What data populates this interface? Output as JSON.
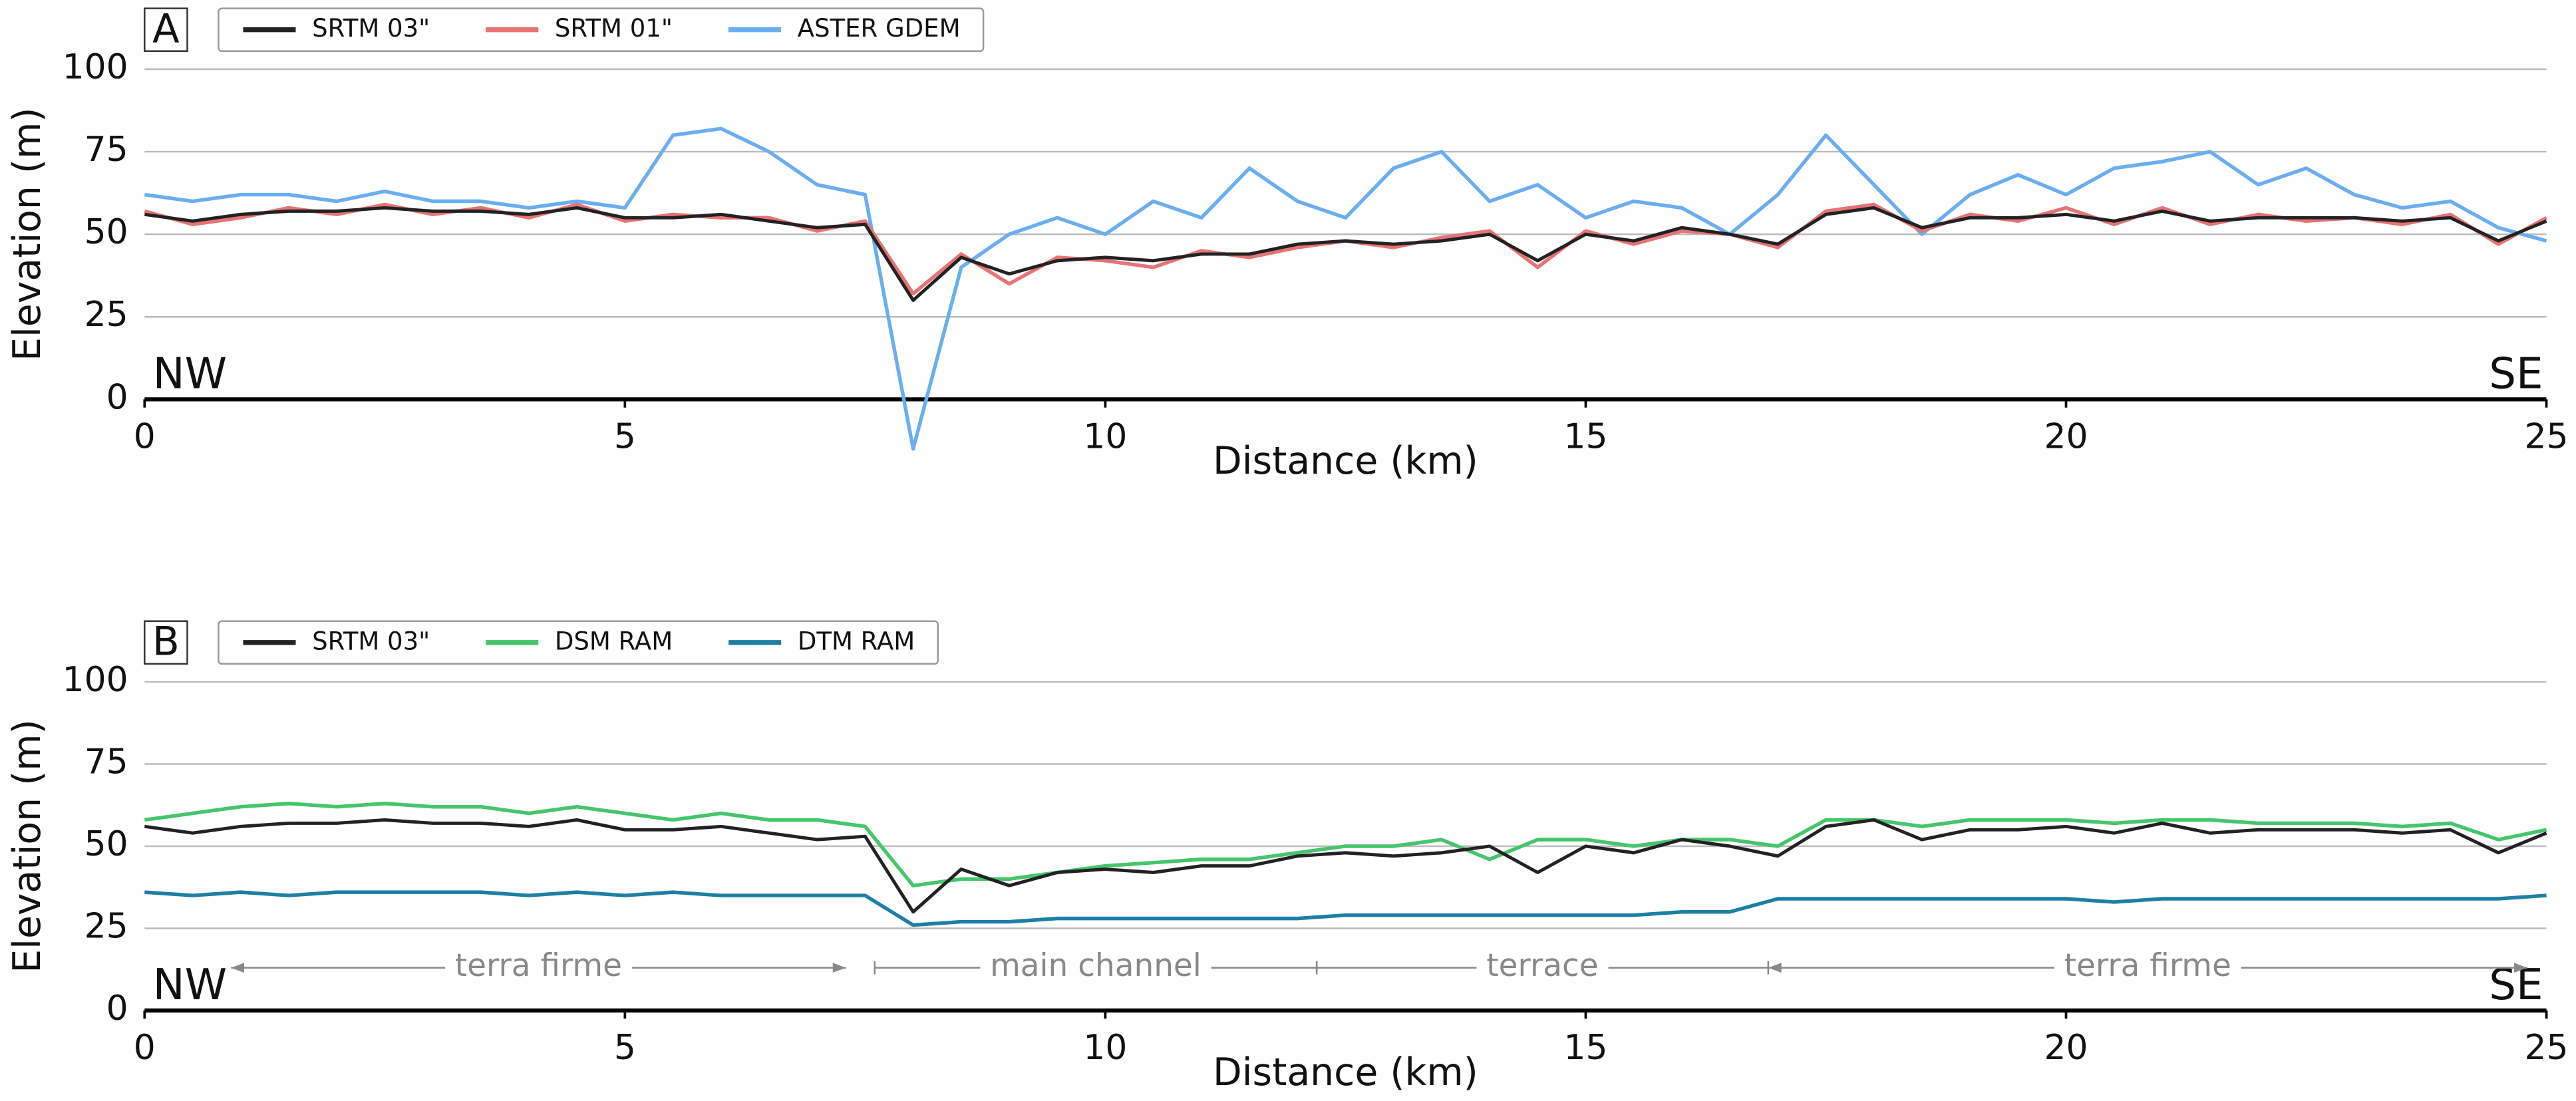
{
  "chart_data": [
    {
      "type": "line",
      "panel_label": "A",
      "x_label": "Distance (km)",
      "y_label": "Elevation (m)",
      "corner_labels": [
        "NW",
        "SE"
      ],
      "xlim": [
        0,
        25
      ],
      "xticks": [
        0,
        5,
        10,
        15,
        20,
        25
      ],
      "ylim": [
        0,
        100
      ],
      "yticks": [
        0,
        25,
        50,
        75,
        100
      ],
      "grid": true,
      "x": [
        0,
        0.5,
        1,
        1.5,
        2,
        2.5,
        3,
        3.5,
        4,
        4.5,
        5,
        5.5,
        6,
        6.5,
        7,
        7.5,
        8,
        8.5,
        9,
        9.5,
        10,
        10.5,
        11,
        11.5,
        12,
        12.5,
        13,
        13.5,
        14,
        14.5,
        15,
        15.5,
        16,
        16.5,
        17,
        17.5,
        18,
        18.5,
        19,
        19.5,
        20,
        20.5,
        21,
        21.5,
        22,
        22.5,
        23,
        23.5,
        24,
        24.5,
        25
      ],
      "series": [
        {
          "name": "ASTER GDEM",
          "color": "#6aaef0",
          "values": [
            62,
            60,
            62,
            62,
            60,
            63,
            60,
            60,
            58,
            60,
            58,
            80,
            82,
            75,
            65,
            62,
            -15,
            40,
            50,
            55,
            50,
            60,
            55,
            70,
            60,
            55,
            70,
            75,
            60,
            65,
            55,
            60,
            58,
            50,
            62,
            80,
            65,
            50,
            62,
            68,
            62,
            70,
            72,
            75,
            65,
            70,
            62,
            58,
            60,
            52,
            48
          ]
        },
        {
          "name": "SRTM 01\"",
          "color": "#e87373",
          "values": [
            57,
            53,
            55,
            58,
            56,
            59,
            56,
            58,
            55,
            59,
            54,
            56,
            55,
            55,
            51,
            54,
            32,
            44,
            35,
            43,
            42,
            40,
            45,
            43,
            46,
            48,
            46,
            49,
            51,
            40,
            51,
            47,
            51,
            50,
            46,
            57,
            59,
            51,
            56,
            54,
            58,
            53,
            58,
            53,
            56,
            54,
            55,
            53,
            56,
            47,
            55
          ]
        },
        {
          "name": "SRTM 03\"",
          "color": "#222222",
          "values": [
            56,
            54,
            56,
            57,
            57,
            58,
            57,
            57,
            56,
            58,
            55,
            55,
            56,
            54,
            52,
            53,
            30,
            43,
            38,
            42,
            43,
            42,
            44,
            44,
            47,
            48,
            47,
            48,
            50,
            42,
            50,
            48,
            52,
            50,
            47,
            56,
            58,
            52,
            55,
            55,
            56,
            54,
            57,
            54,
            55,
            55,
            55,
            54,
            55,
            48,
            54
          ]
        }
      ]
    },
    {
      "type": "line",
      "panel_label": "B",
      "x_label": "Distance (km)",
      "y_label": "Elevation (m)",
      "corner_labels": [
        "NW",
        "SE"
      ],
      "xlim": [
        0,
        25
      ],
      "xticks": [
        0,
        5,
        10,
        15,
        20,
        25
      ],
      "ylim": [
        0,
        100
      ],
      "yticks": [
        0,
        25,
        50,
        75,
        100
      ],
      "grid": true,
      "x": [
        0,
        0.5,
        1,
        1.5,
        2,
        2.5,
        3,
        3.5,
        4,
        4.5,
        5,
        5.5,
        6,
        6.5,
        7,
        7.5,
        8,
        8.5,
        9,
        9.5,
        10,
        10.5,
        11,
        11.5,
        12,
        12.5,
        13,
        13.5,
        14,
        14.5,
        15,
        15.5,
        16,
        16.5,
        17,
        17.5,
        18,
        18.5,
        19,
        19.5,
        20,
        20.5,
        21,
        21.5,
        22,
        22.5,
        23,
        23.5,
        24,
        24.5,
        25
      ],
      "series": [
        {
          "name": "DSM RAM",
          "color": "#45c66a",
          "values": [
            58,
            60,
            62,
            63,
            62,
            63,
            62,
            62,
            60,
            62,
            60,
            58,
            60,
            58,
            58,
            56,
            38,
            40,
            40,
            42,
            44,
            45,
            46,
            46,
            48,
            50,
            50,
            52,
            46,
            52,
            52,
            50,
            52,
            52,
            50,
            58,
            58,
            56,
            58,
            58,
            58,
            57,
            58,
            58,
            57,
            57,
            57,
            56,
            57,
            52,
            55
          ]
        },
        {
          "name": "DTM RAM",
          "color": "#1e7fa6",
          "values": [
            36,
            35,
            36,
            35,
            36,
            36,
            36,
            36,
            35,
            36,
            35,
            36,
            35,
            35,
            35,
            35,
            26,
            27,
            27,
            28,
            28,
            28,
            28,
            28,
            28,
            29,
            29,
            29,
            29,
            29,
            29,
            29,
            30,
            30,
            34,
            34,
            34,
            34,
            34,
            34,
            34,
            33,
            34,
            34,
            34,
            34,
            34,
            34,
            34,
            34,
            35
          ]
        },
        {
          "name": "SRTM 03\"",
          "color": "#222222",
          "values": [
            56,
            54,
            56,
            57,
            57,
            58,
            57,
            57,
            56,
            58,
            55,
            55,
            56,
            54,
            52,
            53,
            30,
            43,
            38,
            42,
            43,
            42,
            44,
            44,
            47,
            48,
            47,
            48,
            50,
            42,
            50,
            48,
            52,
            50,
            47,
            56,
            58,
            52,
            55,
            55,
            56,
            54,
            57,
            54,
            55,
            55,
            55,
            54,
            55,
            48,
            54
          ]
        }
      ],
      "legend_order": [
        2,
        0,
        1
      ],
      "annotations": [
        {
          "text": "terra firme",
          "x": [
            0.9,
            7.3
          ],
          "arrows": "both"
        },
        {
          "text": "main channel",
          "x": [
            7.6,
            12.2
          ],
          "arrows": "bars"
        },
        {
          "text": "terrace",
          "x": [
            12.2,
            16.9
          ],
          "arrows": "bars"
        },
        {
          "text": "terra firme",
          "x": [
            16.9,
            24.8
          ],
          "arrows": "both"
        }
      ]
    }
  ]
}
